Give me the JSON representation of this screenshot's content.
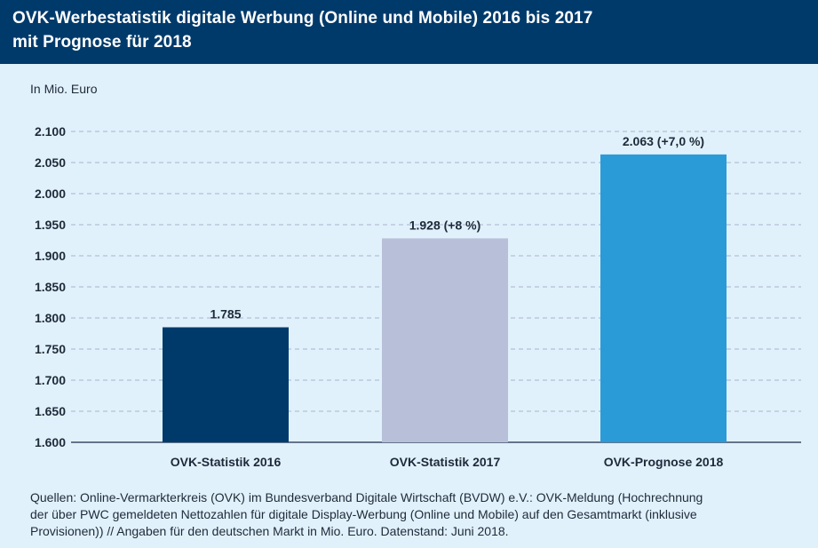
{
  "header": {
    "title_line1": "OVK-Werbestatistik digitale Werbung (Online und Mobile) 2016 bis 2017",
    "title_line2": "mit Prognose für 2018"
  },
  "unit_label": "In Mio. Euro",
  "chart_data": {
    "type": "bar",
    "categories": [
      "OVK-Statistik 2016",
      "OVK-Statistik 2017",
      "OVK-Prognose 2018"
    ],
    "values": [
      1785,
      1928,
      2063
    ],
    "data_labels": [
      "1.785",
      "1.928 (+8 %)",
      "2.063 (+7,0 %)"
    ],
    "colors": [
      "#003a6b",
      "#b8bfd9",
      "#2b9bd8"
    ],
    "ylim": [
      1600,
      2100
    ],
    "yticks": [
      1600,
      1650,
      1700,
      1750,
      1800,
      1850,
      1900,
      1950,
      2000,
      2050,
      2100
    ],
    "ytick_labels": [
      "1.600",
      "1.650",
      "1.700",
      "1.750",
      "1.800",
      "1.850",
      "1.900",
      "1.950",
      "2.000",
      "2.050",
      "2.100"
    ],
    "grid": true
  },
  "source": {
    "line1": "Quellen: Online-Vermarkterkreis (OVK) im Bundesverband Digitale Wirtschaft (BVDW) e.V.: OVK-Meldung (Hochrechnung",
    "line2": "der über PWC gemeldeten Nettozahlen für digitale Display-Werbung (Online und Mobile) auf den Gesamtmarkt (inklusive",
    "line3": "Provisionen)) // Angaben für den deutschen Markt in Mio. Euro. Datenstand: Juni 2018."
  }
}
